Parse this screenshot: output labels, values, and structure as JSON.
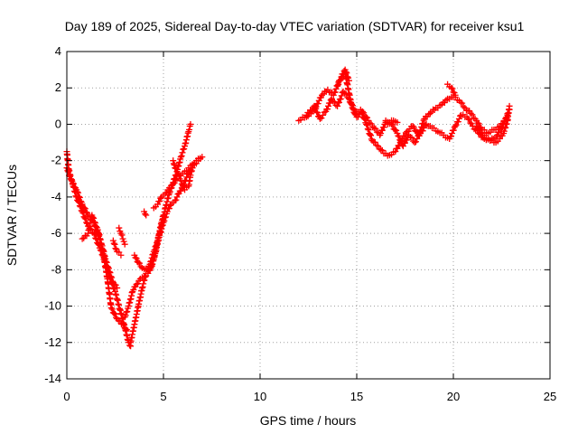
{
  "chart_data": {
    "type": "scatter",
    "title": "Day 189 of 2025, Sidereal Day-to-day VTEC variation (SDTVAR) for receiver ksu1",
    "xlabel": "GPS time / hours",
    "ylabel": "SDTVAR / TECUs",
    "xlim": [
      0,
      25
    ],
    "ylim": [
      -14,
      4
    ],
    "x_ticks": [
      0,
      5,
      10,
      15,
      20,
      25
    ],
    "y_ticks": [
      -14,
      -12,
      -10,
      -8,
      -6,
      -4,
      -2,
      0,
      2,
      4
    ],
    "grid": true,
    "marker": "+",
    "series": [
      {
        "name": "SDTVAR",
        "color": "#ff0000",
        "tracks": [
          {
            "x": [
              0.0,
              0.1,
              0.3,
              0.5,
              0.8,
              1.1,
              1.4,
              1.7,
              2.0,
              2.2,
              2.5,
              2.8,
              3.0,
              3.2,
              3.3
            ],
            "y": [
              -1.5,
              -2.5,
              -3.3,
              -4.0,
              -4.8,
              -5.6,
              -6.0,
              -6.8,
              -7.6,
              -8.4,
              -9.2,
              -10.4,
              -11.2,
              -12.0,
              -12.2
            ]
          },
          {
            "x": [
              0.0,
              0.2,
              0.5,
              0.8,
              1.1,
              1.4,
              1.7,
              1.9,
              2.1,
              2.3,
              2.6,
              2.9,
              3.1
            ],
            "y": [
              -2.4,
              -3.0,
              -3.6,
              -4.4,
              -5.0,
              -5.4,
              -6.3,
              -7.2,
              -8.5,
              -10.1,
              -10.7,
              -11.0,
              -11.3
            ]
          },
          {
            "x": [
              0.8,
              1.1,
              1.3,
              1.6,
              1.8,
              2.0,
              2.2,
              2.4,
              2.6
            ],
            "y": [
              -6.3,
              -6.0,
              -5.0,
              -5.8,
              -6.6,
              -7.4,
              -8.1,
              -8.7,
              -9.0
            ]
          },
          {
            "x": [
              3.3,
              3.5,
              3.7,
              3.9,
              4.1,
              4.3,
              4.5,
              4.7,
              4.9,
              5.1,
              5.3,
              5.5,
              5.7,
              5.9,
              6.1,
              6.3,
              6.4
            ],
            "y": [
              -12.0,
              -11.0,
              -10.0,
              -9.0,
              -8.2,
              -8.0,
              -7.4,
              -6.4,
              -5.6,
              -4.6,
              -3.8,
              -3.2,
              -2.6,
              -1.8,
              -1.2,
              -0.4,
              0.0
            ]
          },
          {
            "x": [
              3.0,
              3.2,
              3.4,
              3.6,
              3.8,
              4.0,
              4.2,
              4.4,
              4.6,
              4.8,
              5.0,
              5.2,
              5.4,
              5.6,
              5.8,
              6.0,
              6.2,
              6.4,
              6.6,
              6.8,
              7.0
            ],
            "y": [
              -10.6,
              -10.0,
              -9.2,
              -8.8,
              -8.5,
              -8.4,
              -8.2,
              -7.8,
              -7.0,
              -6.1,
              -5.4,
              -4.8,
              -4.4,
              -4.2,
              -3.8,
              -3.4,
              -2.9,
              -2.5,
              -2.2,
              -2.0,
              -1.8
            ]
          },
          {
            "x": [
              3.5,
              3.7,
              3.9,
              4.1,
              4.3,
              4.5,
              4.7,
              4.9,
              5.0
            ],
            "y": [
              -7.2,
              -7.6,
              -7.9,
              -8.0,
              -7.7,
              -7.0,
              -6.4,
              -5.4,
              -5.0
            ]
          },
          {
            "x": [
              4.5,
              4.7,
              4.9,
              5.1,
              5.3,
              5.5,
              5.7,
              5.9,
              6.1,
              6.3,
              6.5,
              6.7,
              6.9
            ],
            "y": [
              -4.6,
              -4.4,
              -4.0,
              -3.8,
              -3.5,
              -3.3,
              -3.0,
              -2.8,
              -2.6,
              -2.4,
              -2.2,
              -2.0,
              -1.9
            ]
          },
          {
            "x": [
              5.5,
              5.6,
              5.7,
              5.9,
              6.1,
              6.3,
              6.4,
              6.5
            ],
            "y": [
              -2.0,
              -2.4,
              -2.6,
              -3.1,
              -3.6,
              -3.4,
              -2.8,
              -2.4
            ]
          },
          {
            "x": [
              2.4,
              2.6,
              2.8
            ],
            "y": [
              -6.4,
              -7.0,
              -7.2
            ]
          },
          {
            "x": [
              2.7,
              2.8,
              2.9,
              3.0
            ],
            "y": [
              -5.7,
              -6.0,
              -6.3,
              -6.6
            ]
          },
          {
            "x": [
              4.0,
              4.1
            ],
            "y": [
              -4.8,
              -5.0
            ]
          },
          {
            "x": [
              12.0,
              12.4,
              12.8,
              13.1,
              13.4,
              13.7,
              14.0,
              14.3,
              14.6,
              14.9,
              15.2,
              15.5,
              15.8,
              16.1,
              16.4,
              16.7,
              17.0,
              17.3,
              17.6,
              17.9,
              18.2,
              18.5,
              18.8,
              19.1,
              19.4,
              19.7,
              20.0,
              20.3,
              20.6,
              20.9,
              21.2,
              21.5,
              21.8,
              22.1,
              22.4,
              22.7,
              22.9
            ],
            "y": [
              0.2,
              0.5,
              1.0,
              0.3,
              0.7,
              1.4,
              1.0,
              1.8,
              1.4,
              0.6,
              0.8,
              0.0,
              -0.9,
              -1.2,
              -1.6,
              -1.7,
              -1.5,
              -0.9,
              -0.4,
              -0.1,
              -0.6,
              0.3,
              0.6,
              0.9,
              1.1,
              1.4,
              1.5,
              1.3,
              0.9,
              0.6,
              0.2,
              -0.3,
              -0.5,
              -0.3,
              -0.1,
              0.3,
              0.8
            ]
          },
          {
            "x": [
              12.4,
              12.8,
              13.2,
              13.5,
              13.8,
              14.1,
              14.4,
              14.7,
              15.0,
              15.3,
              15.6,
              15.9,
              16.2,
              16.5,
              16.8,
              17.1,
              17.4,
              17.7,
              18.0,
              18.3,
              18.6,
              18.9,
              19.2,
              19.5,
              19.8,
              20.1,
              20.4,
              20.7,
              21.0,
              21.3,
              21.6,
              21.9,
              22.2,
              22.5,
              22.8
            ],
            "y": [
              0.4,
              0.8,
              1.6,
              1.9,
              1.6,
              2.4,
              2.8,
              1.2,
              0.4,
              0.7,
              0.2,
              -0.2,
              -0.6,
              0.1,
              0.0,
              -0.5,
              -1.2,
              -0.6,
              -1.0,
              -0.5,
              0.0,
              -0.2,
              -0.4,
              -0.6,
              -0.8,
              -0.1,
              0.5,
              0.4,
              -0.1,
              -0.5,
              -0.8,
              -0.9,
              -0.7,
              -0.2,
              0.5
            ]
          },
          {
            "x": [
              14.0,
              14.2,
              14.4,
              14.6
            ],
            "y": [
              2.1,
              2.6,
              3.0,
              2.4
            ]
          },
          {
            "x": [
              16.5,
              16.7,
              16.9,
              17.1
            ],
            "y": [
              0.2,
              0.1,
              0.2,
              0.1
            ]
          },
          {
            "x": [
              19.7,
              19.9,
              20.1
            ],
            "y": [
              2.2,
              2.0,
              1.6
            ]
          },
          {
            "x": [
              21.2,
              21.5,
              21.8,
              22.1
            ],
            "y": [
              -0.1,
              -0.6,
              -0.8,
              -1.0
            ]
          },
          {
            "x": [
              22.2,
              22.4,
              22.6,
              22.8,
              22.9
            ],
            "y": [
              -1.0,
              -0.8,
              -0.5,
              0.2,
              1.0
            ]
          }
        ]
      }
    ]
  }
}
